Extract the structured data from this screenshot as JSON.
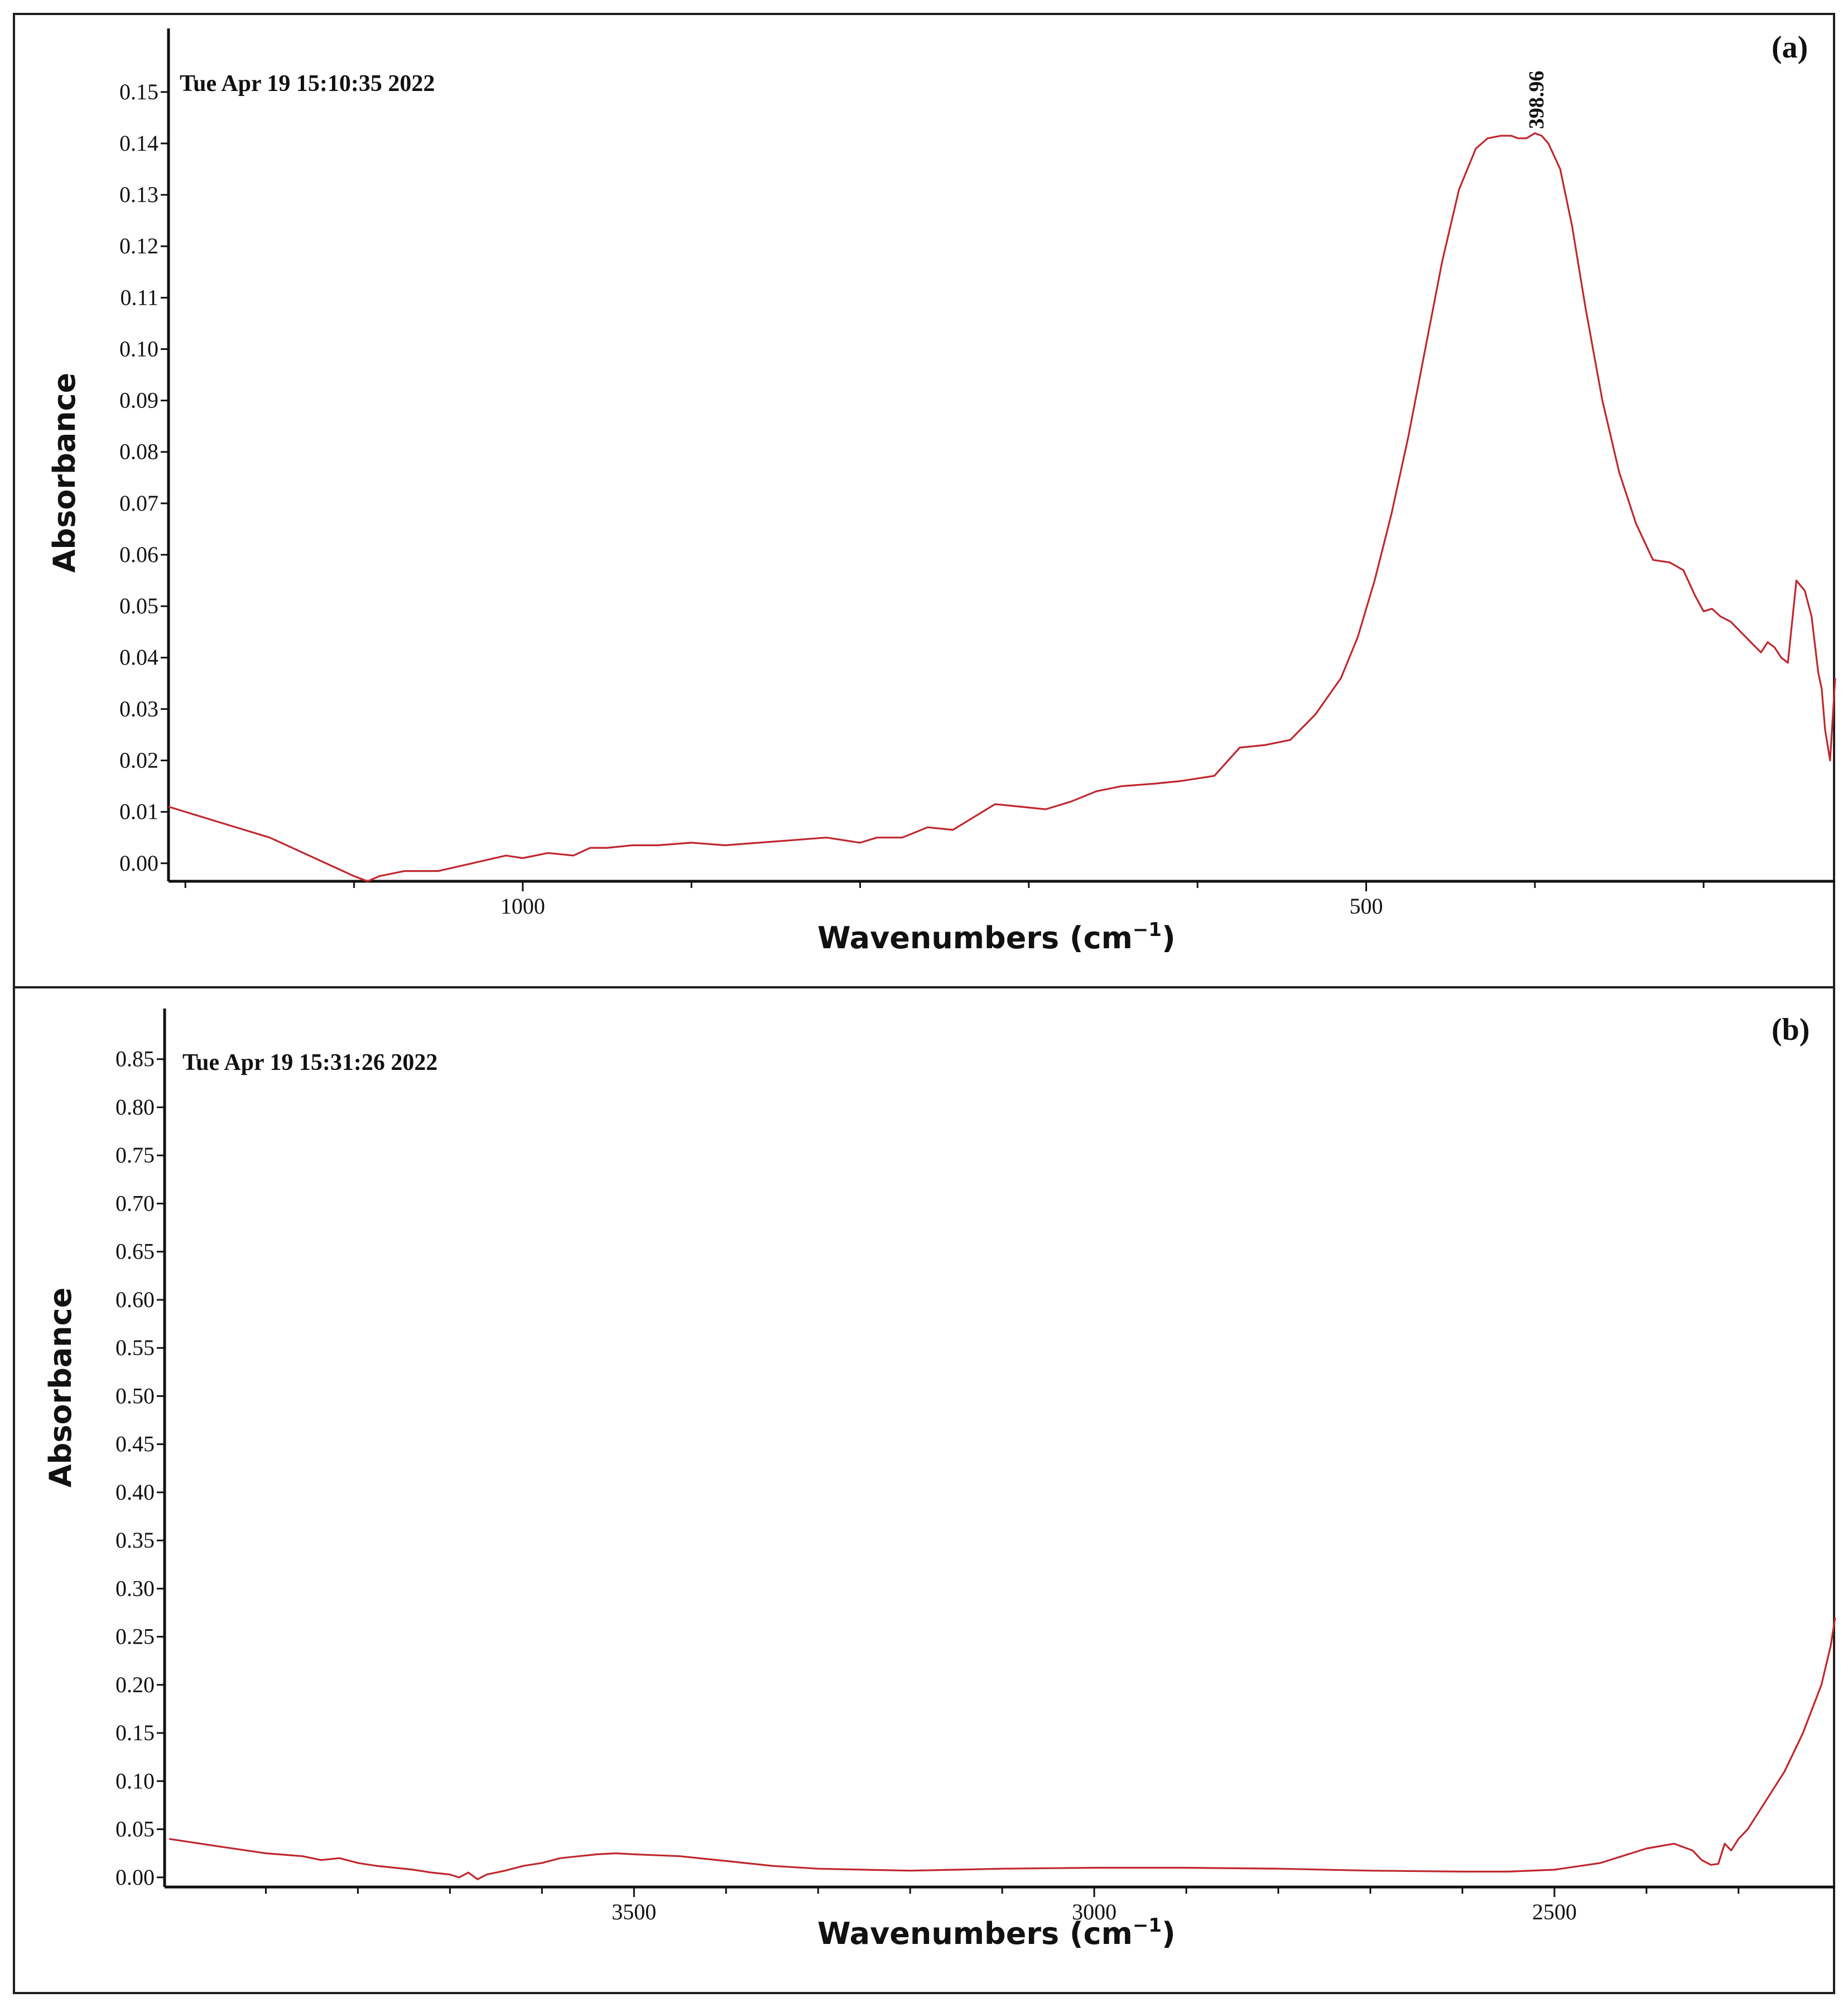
{
  "chart_data": [
    {
      "panel_label": "(a)",
      "type": "line",
      "timestamp": "Tue Apr 19 15:10:35 2022",
      "xlabel_main": "Wavenumbers (cm",
      "xlabel_sup": "−1",
      "xlabel_close": ")",
      "ylabel": "Absorbance",
      "xlim": [
        1210,
        222
      ],
      "ylim": [
        -0.0035,
        0.154
      ],
      "x_ticks": [
        1000,
        500
      ],
      "x_minor_ticks": [
        1200,
        1100,
        900,
        800,
        700,
        600,
        400,
        300
      ],
      "y_ticks": [
        "0.00",
        "0.01",
        "0.02",
        "0.03",
        "0.04",
        "0.05",
        "0.06",
        "0.07",
        "0.08",
        "0.09",
        "0.10",
        "0.11",
        "0.12",
        "0.13",
        "0.14",
        "0.15"
      ],
      "annotation": {
        "text": "398.96",
        "x": 398.96,
        "y": 0.1415
      },
      "series": [
        {
          "name": "spectrum a",
          "color": "#c0272d",
          "x": [
            1210,
            1180,
            1150,
            1130,
            1110,
            1100,
            1092,
            1085,
            1070,
            1050,
            1030,
            1010,
            1000,
            985,
            970,
            960,
            950,
            935,
            920,
            900,
            880,
            860,
            840,
            820,
            800,
            790,
            775,
            760,
            745,
            730,
            720,
            705,
            690,
            675,
            660,
            645,
            625,
            610,
            590,
            575,
            560,
            545,
            530,
            515,
            505,
            495,
            485,
            475,
            465,
            455,
            445,
            435,
            428,
            420,
            414,
            410,
            405,
            400,
            396,
            392,
            385,
            378,
            370,
            360,
            350,
            340,
            330,
            320,
            312,
            305,
            300,
            295,
            290,
            284,
            278,
            272,
            266,
            262,
            258,
            254,
            250,
            245,
            240,
            236,
            232,
            230,
            228,
            225,
            222
          ],
          "y": [
            0.011,
            0.008,
            0.005,
            0.002,
            -0.001,
            -0.0025,
            -0.0035,
            -0.0025,
            -0.0015,
            -0.0015,
            0.0,
            0.0015,
            0.001,
            0.002,
            0.0015,
            0.003,
            0.003,
            0.0035,
            0.0035,
            0.004,
            0.0035,
            0.004,
            0.0045,
            0.005,
            0.004,
            0.005,
            0.005,
            0.007,
            0.0065,
            0.0095,
            0.0115,
            0.011,
            0.0105,
            0.012,
            0.014,
            0.015,
            0.0155,
            0.016,
            0.017,
            0.0225,
            0.023,
            0.024,
            0.029,
            0.036,
            0.044,
            0.055,
            0.068,
            0.083,
            0.1,
            0.117,
            0.131,
            0.139,
            0.141,
            0.1415,
            0.1415,
            0.141,
            0.141,
            0.142,
            0.1415,
            0.14,
            0.135,
            0.124,
            0.108,
            0.09,
            0.076,
            0.066,
            0.059,
            0.0585,
            0.057,
            0.052,
            0.049,
            0.0495,
            0.048,
            0.047,
            0.045,
            0.043,
            0.041,
            0.043,
            0.042,
            0.04,
            0.039,
            0.055,
            0.053,
            0.048,
            0.037,
            0.034,
            0.026,
            0.02,
            0.036
          ]
        }
      ]
    },
    {
      "panel_label": "(b)",
      "type": "line",
      "timestamp": "Tue Apr 19 15:31:26 2022",
      "xlabel_main": "Wavenumbers (cm",
      "xlabel_sup": "−1",
      "xlabel_close": ")",
      "ylabel": "Absorbance",
      "xlim": [
        4010,
        2195
      ],
      "ylim": [
        -0.01,
        0.88
      ],
      "x_ticks": [
        3500,
        3000,
        2500
      ],
      "x_minor_ticks": [
        3900,
        3800,
        3700,
        3600,
        3400,
        3300,
        3200,
        3100,
        2900,
        2800,
        2700,
        2600,
        2400,
        2300
      ],
      "y_ticks": [
        "0.00",
        "0.05",
        "0.10",
        "0.15",
        "0.20",
        "0.25",
        "0.30",
        "0.35",
        "0.40",
        "0.45",
        "0.50",
        "0.55",
        "0.60",
        "0.65",
        "0.70",
        "0.75",
        "0.80",
        "0.85"
      ],
      "series": [
        {
          "name": "spectrum b",
          "color": "#c0272d",
          "x": [
            4005,
            3950,
            3900,
            3860,
            3840,
            3820,
            3800,
            3780,
            3760,
            3740,
            3720,
            3700,
            3690,
            3680,
            3670,
            3660,
            3640,
            3620,
            3600,
            3580,
            3560,
            3540,
            3520,
            3500,
            3450,
            3400,
            3350,
            3300,
            3250,
            3200,
            3150,
            3100,
            3000,
            2900,
            2800,
            2700,
            2600,
            2550,
            2500,
            2450,
            2400,
            2370,
            2350,
            2340,
            2330,
            2322,
            2315,
            2308,
            2300,
            2290,
            2270,
            2250,
            2230,
            2210,
            2200,
            2195
          ],
          "y": [
            0.04,
            0.032,
            0.025,
            0.022,
            0.018,
            0.02,
            0.015,
            0.012,
            0.01,
            0.008,
            0.005,
            0.003,
            0.0,
            0.005,
            -0.002,
            0.003,
            0.007,
            0.012,
            0.015,
            0.02,
            0.022,
            0.024,
            0.025,
            0.024,
            0.022,
            0.017,
            0.012,
            0.009,
            0.008,
            0.007,
            0.008,
            0.009,
            0.01,
            0.01,
            0.009,
            0.007,
            0.006,
            0.006,
            0.008,
            0.015,
            0.03,
            0.035,
            0.028,
            0.018,
            0.013,
            0.014,
            0.035,
            0.028,
            0.04,
            0.05,
            0.08,
            0.11,
            0.15,
            0.2,
            0.24,
            0.27
          ]
        }
      ]
    }
  ]
}
